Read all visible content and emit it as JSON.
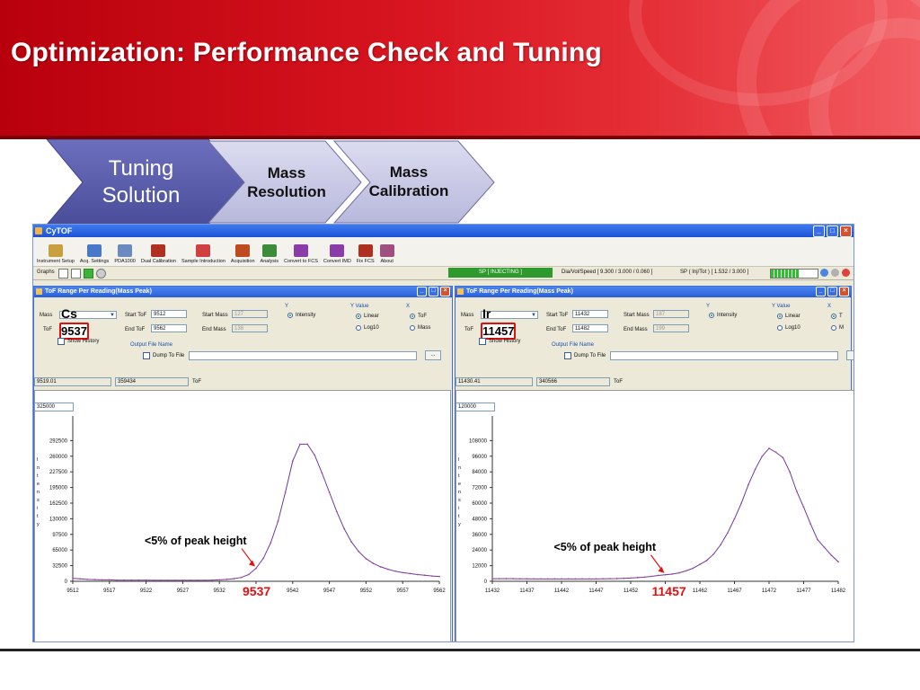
{
  "slide": {
    "title": "Optimization: Performance Check and Tuning",
    "steps": [
      {
        "label_line1": "Tuning",
        "label_line2": "Solution"
      },
      {
        "label_line1": "Mass",
        "label_line2": "Resolution"
      },
      {
        "label_line1": "Mass",
        "label_line2": "Calibration"
      }
    ]
  },
  "app": {
    "title": "CyTOF",
    "toolbar": [
      {
        "label": "Instrument Setup",
        "icon": "instrument-setup-icon",
        "color": "#c8a040"
      },
      {
        "label": "Acq. Settings",
        "icon": "acq-settings-icon",
        "color": "#4a78c8"
      },
      {
        "label": "PDA1000",
        "icon": "pda-icon",
        "color": "#6a8ac0"
      },
      {
        "label": "Dual Calibration",
        "icon": "tools-icon",
        "color": "#b03020"
      },
      {
        "label": "Sample Introduction",
        "icon": "syringe-icon",
        "color": "#d04040"
      },
      {
        "label": "Acquisition",
        "icon": "acquisition-icon",
        "color": "#c04a20"
      },
      {
        "label": "Analysis",
        "icon": "analysis-icon",
        "color": "#3c8c3c"
      },
      {
        "label": "Convert to FCS",
        "icon": "convert-fcs-icon",
        "color": "#8a3ca8"
      },
      {
        "label": "Convert IMD",
        "icon": "convert-imd-icon",
        "color": "#8a3ca8"
      },
      {
        "label": "Fix FCS",
        "icon": "fix-fcs-icon",
        "color": "#b03020"
      },
      {
        "label": "About",
        "icon": "about-icon",
        "color": "#a05080"
      }
    ],
    "status": {
      "graphs_label": "Graphs",
      "sp_status": "SP [ INJECTING ]",
      "dia_speed": "Dia/Vol/Speed [ 9.300 / 3.000 / 0.060 ]",
      "sp_info": "SP ( Inj/Tot ) [ 1.532 / 3.000 ]",
      "progress_fraction": 0.62
    }
  },
  "panels": [
    {
      "title": "ToF Range Per Reading(Mass Peak)",
      "mass_label": "Mass",
      "mass_value": "Cs",
      "tof_label": "ToF",
      "tof_value": "9537",
      "show_history": "Show History",
      "start_tof_label": "Start ToF",
      "start_tof": "9512",
      "end_tof_label": "End ToF",
      "end_tof": "9562",
      "start_mass_label": "Start Mass",
      "start_mass": "127",
      "end_mass_label": "End Mass",
      "end_mass": "138",
      "y_group": "Y",
      "y_option": "Intensity",
      "yvalue_group": "Y Value",
      "linear": "Linear",
      "log10": "Log10",
      "x_group": "X",
      "x_tof": "ToF",
      "x_mass": "Mass",
      "output_group": "Output File Name",
      "dump_label": "Dump To File",
      "browse": "...",
      "read_tof": "9519.01",
      "read_val": "359434",
      "read_unit": "ToF",
      "ymax": "325000",
      "annotation": "<5% of peak height",
      "marker_label": "9537",
      "ylabel": "Intensity",
      "chart_data": {
        "type": "line",
        "x": [
          9512,
          9513,
          9514,
          9515,
          9516,
          9517,
          9518,
          9519,
          9520,
          9521,
          9522,
          9523,
          9524,
          9525,
          9526,
          9527,
          9528,
          9529,
          9530,
          9531,
          9532,
          9533,
          9534,
          9535,
          9536,
          9537,
          9538,
          9539,
          9540,
          9541,
          9542,
          9543,
          9544,
          9545,
          9546,
          9547,
          9548,
          9549,
          9550,
          9551,
          9552,
          9553,
          9554,
          9555,
          9556,
          9557,
          9558,
          9559,
          9560,
          9561,
          9562
        ],
        "y": [
          6000,
          5000,
          4000,
          3500,
          3000,
          3000,
          2500,
          2500,
          2500,
          2500,
          2500,
          2000,
          2000,
          2000,
          2000,
          2000,
          2000,
          2000,
          2000,
          2500,
          3000,
          4000,
          5500,
          8000,
          14000,
          27000,
          48000,
          80000,
          125000,
          185000,
          250000,
          285000,
          285000,
          262000,
          225000,
          185000,
          145000,
          110000,
          82000,
          62000,
          47000,
          37000,
          30000,
          25000,
          21000,
          18000,
          16000,
          14000,
          12500,
          11000,
          10000
        ],
        "yticks": [
          0,
          32500,
          65000,
          97500,
          130000,
          162500,
          195000,
          227500,
          260000,
          292500
        ],
        "xticks": [
          9512,
          9517,
          9522,
          9527,
          9532,
          9537,
          9542,
          9547,
          9552,
          9557,
          9562
        ],
        "ylim": [
          0,
          325000
        ],
        "xlim": [
          9512,
          9562
        ]
      }
    },
    {
      "title": "ToF Range Per Reading(Mass Peak)",
      "mass_label": "Mass",
      "mass_value": "Ir",
      "tof_label": "ToF",
      "tof_value": "11457",
      "show_history": "Show History",
      "start_tof_label": "Start ToF",
      "start_tof": "11432",
      "end_tof_label": "End ToF",
      "end_tof": "11482",
      "start_mass_label": "Start Mass",
      "start_mass": "187",
      "end_mass_label": "End Mass",
      "end_mass": "199",
      "y_group": "Y",
      "y_option": "Intensity",
      "yvalue_group": "Y Value",
      "linear": "Linear",
      "log10": "Log10",
      "x_group": "X",
      "x_tof": "T",
      "x_mass": "M",
      "output_group": "Output File Name",
      "dump_label": "Dump To File",
      "browse": "",
      "read_tof": "11430.41",
      "read_val": "340566",
      "read_unit": "ToF",
      "ymax": "120000",
      "annotation": "<5% of peak height",
      "marker_label": "11457",
      "ylabel": "Intensity",
      "chart_data": {
        "type": "line",
        "x": [
          11432,
          11433,
          11434,
          11435,
          11436,
          11437,
          11438,
          11439,
          11440,
          11441,
          11442,
          11443,
          11444,
          11445,
          11446,
          11447,
          11448,
          11449,
          11450,
          11451,
          11452,
          11453,
          11454,
          11455,
          11456,
          11457,
          11458,
          11459,
          11460,
          11461,
          11462,
          11463,
          11464,
          11465,
          11466,
          11467,
          11468,
          11469,
          11470,
          11471,
          11472,
          11473,
          11474,
          11475,
          11476,
          11477,
          11478,
          11479,
          11480,
          11481,
          11482
        ],
        "y": [
          2000,
          2000,
          2000,
          2000,
          1900,
          1900,
          1800,
          1800,
          1800,
          1800,
          1800,
          1800,
          1800,
          1800,
          1800,
          1800,
          1900,
          2000,
          2100,
          2300,
          2500,
          2800,
          3200,
          3800,
          4500,
          5000,
          5500,
          6500,
          8000,
          10000,
          13000,
          16000,
          21000,
          28000,
          37000,
          48000,
          60000,
          74000,
          86000,
          96000,
          102000,
          99000,
          95000,
          84000,
          69000,
          57000,
          44000,
          32000,
          26000,
          20000,
          15000
        ],
        "yticks": [
          0,
          12000,
          24000,
          36000,
          48000,
          60000,
          72000,
          84000,
          96000,
          108000
        ],
        "xticks": [
          11432,
          11437,
          11442,
          11447,
          11452,
          11457,
          11462,
          11467,
          11472,
          11477,
          11482
        ],
        "ylim": [
          0,
          120000
        ],
        "xlim": [
          11432,
          11482
        ]
      }
    }
  ]
}
